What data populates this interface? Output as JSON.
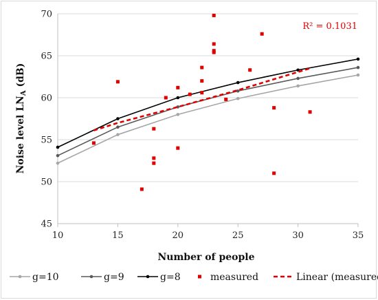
{
  "chart_data": {
    "type": "line",
    "xlabel": "Number of people",
    "ylabel": "Noise level LN,A (dB)",
    "ylabel_main": "Noise level LN",
    "ylabel_sub": "A",
    "ylabel_tail": " (dB)",
    "xlim": [
      10,
      35
    ],
    "ylim": [
      45,
      70
    ],
    "x_ticks": [
      "10",
      "15",
      "20",
      "25",
      "30",
      "35"
    ],
    "y_ticks": [
      "45",
      "50",
      "55",
      "60",
      "65",
      "70"
    ],
    "grid": "horizontal",
    "annotation": "R² = 0.1031",
    "legend_position": "bottom",
    "series": [
      {
        "name": "g=10",
        "kind": "line-marker",
        "color": "#a6a6a6",
        "x": [
          10,
          15,
          20,
          25,
          30,
          35
        ],
        "y": [
          52.2,
          55.6,
          58.0,
          59.9,
          61.4,
          62.7
        ]
      },
      {
        "name": "g=9",
        "kind": "line-marker",
        "color": "#595959",
        "x": [
          10,
          15,
          20,
          25,
          30,
          35
        ],
        "y": [
          53.1,
          56.5,
          58.9,
          60.8,
          62.3,
          63.6
        ]
      },
      {
        "name": "g=8",
        "kind": "line-marker",
        "color": "#000000",
        "x": [
          10,
          15,
          20,
          25,
          30,
          35
        ],
        "y": [
          54.1,
          57.5,
          60.0,
          61.8,
          63.3,
          64.6
        ]
      },
      {
        "name": "measured",
        "kind": "scatter",
        "color": "#e00000",
        "points": [
          [
            13,
            54.6
          ],
          [
            15,
            61.9
          ],
          [
            17,
            49.1
          ],
          [
            18,
            56.3
          ],
          [
            18,
            52.8
          ],
          [
            18,
            52.2
          ],
          [
            19,
            60.0
          ],
          [
            20,
            61.2
          ],
          [
            20,
            54.0
          ],
          [
            21,
            60.4
          ],
          [
            22,
            63.6
          ],
          [
            22,
            62.0
          ],
          [
            22,
            60.6
          ],
          [
            23,
            69.8
          ],
          [
            23,
            66.4
          ],
          [
            23,
            65.6
          ],
          [
            23,
            65.4
          ],
          [
            24,
            59.8
          ],
          [
            26,
            63.3
          ],
          [
            27,
            67.6
          ],
          [
            28,
            58.8
          ],
          [
            28,
            51.0
          ],
          [
            31,
            58.3
          ]
        ]
      },
      {
        "name": "Linear (measured)",
        "kind": "dashed-line",
        "color": "#e00000",
        "x": [
          13,
          15,
          20,
          25,
          31
        ],
        "y": [
          56.1,
          57.0,
          58.9,
          60.9,
          63.5
        ]
      }
    ]
  }
}
